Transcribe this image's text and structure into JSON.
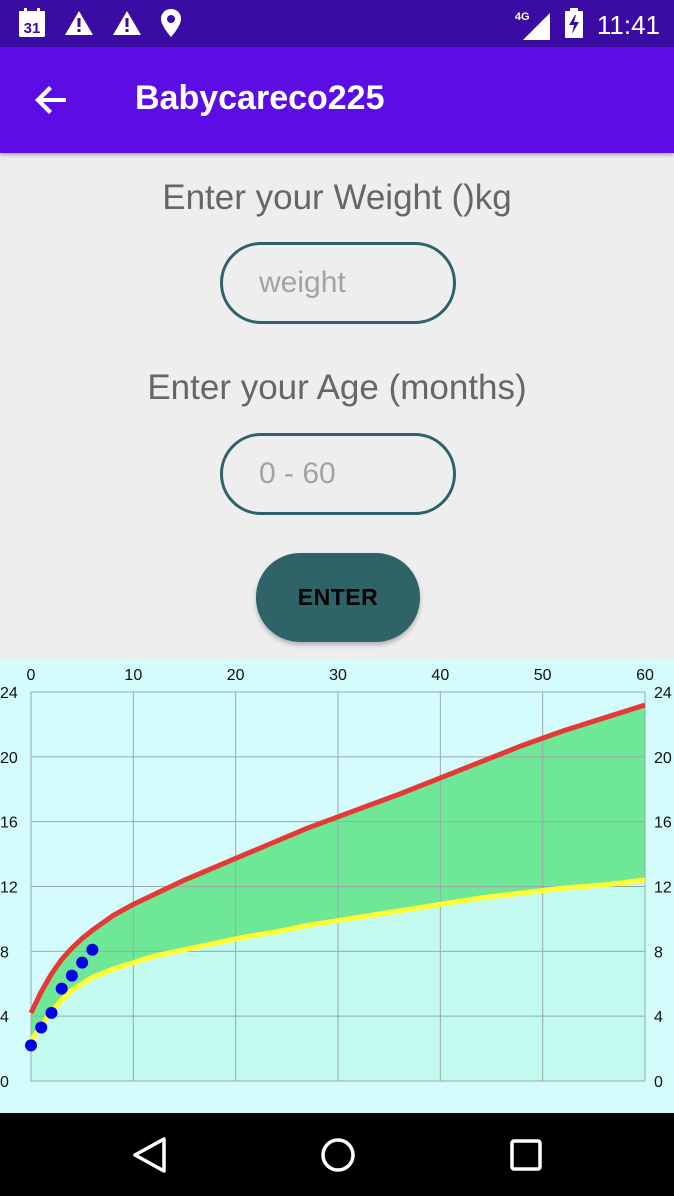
{
  "status_bar": {
    "time": "11:41",
    "network": "4G",
    "left_icons": [
      "calendar-icon",
      "warning-icon",
      "warning-icon",
      "location-icon"
    ],
    "calendar_day": "31"
  },
  "app_bar": {
    "title": "Babycareco225"
  },
  "form": {
    "weight_label": "Enter your Weight ()kg",
    "weight_placeholder": "weight",
    "age_label": "Enter your Age (months)",
    "age_placeholder": "0 - 60",
    "enter_button": "ENTER"
  },
  "colors": {
    "upper_line": "#e53935",
    "lower_line": "#ffff33",
    "band_fill": "#6ee896",
    "below_fill": "#c2faf0",
    "points": "#0000e6"
  },
  "chart_data": {
    "type": "line",
    "x_range": [
      0,
      60
    ],
    "y_range": [
      0,
      24
    ],
    "x_ticks": [
      0,
      10,
      20,
      30,
      40,
      50,
      60
    ],
    "y_ticks": [
      0,
      4,
      8,
      12,
      16,
      20,
      24
    ],
    "grid": true,
    "series": [
      {
        "x": [
          0,
          1,
          2,
          3,
          4,
          5,
          6,
          8,
          10,
          12,
          15,
          18,
          21,
          24,
          27,
          30,
          33,
          36,
          40,
          44,
          48,
          52,
          56,
          60
        ],
        "values": [
          4.2,
          5.5,
          6.6,
          7.5,
          8.2,
          8.8,
          9.3,
          10.2,
          10.9,
          11.5,
          12.4,
          13.2,
          14.0,
          14.8,
          15.6,
          16.3,
          17.0,
          17.7,
          18.7,
          19.7,
          20.7,
          21.6,
          22.4,
          23.2
        ]
      },
      {
        "x": [
          0,
          1,
          2,
          3,
          4,
          5,
          6,
          8,
          10,
          12,
          15,
          18,
          21,
          24,
          27,
          30,
          33,
          36,
          40,
          44,
          48,
          52,
          56,
          60
        ],
        "values": [
          2.5,
          3.4,
          4.3,
          5.0,
          5.6,
          6.0,
          6.4,
          6.9,
          7.3,
          7.7,
          8.1,
          8.5,
          8.9,
          9.2,
          9.6,
          9.9,
          10.2,
          10.5,
          10.9,
          11.3,
          11.6,
          11.9,
          12.1,
          12.4
        ]
      },
      {
        "x": [
          0,
          1,
          2,
          3,
          4,
          5,
          6
        ],
        "values": [
          2.2,
          3.3,
          4.2,
          5.7,
          6.5,
          7.3,
          8.1
        ]
      }
    ]
  }
}
